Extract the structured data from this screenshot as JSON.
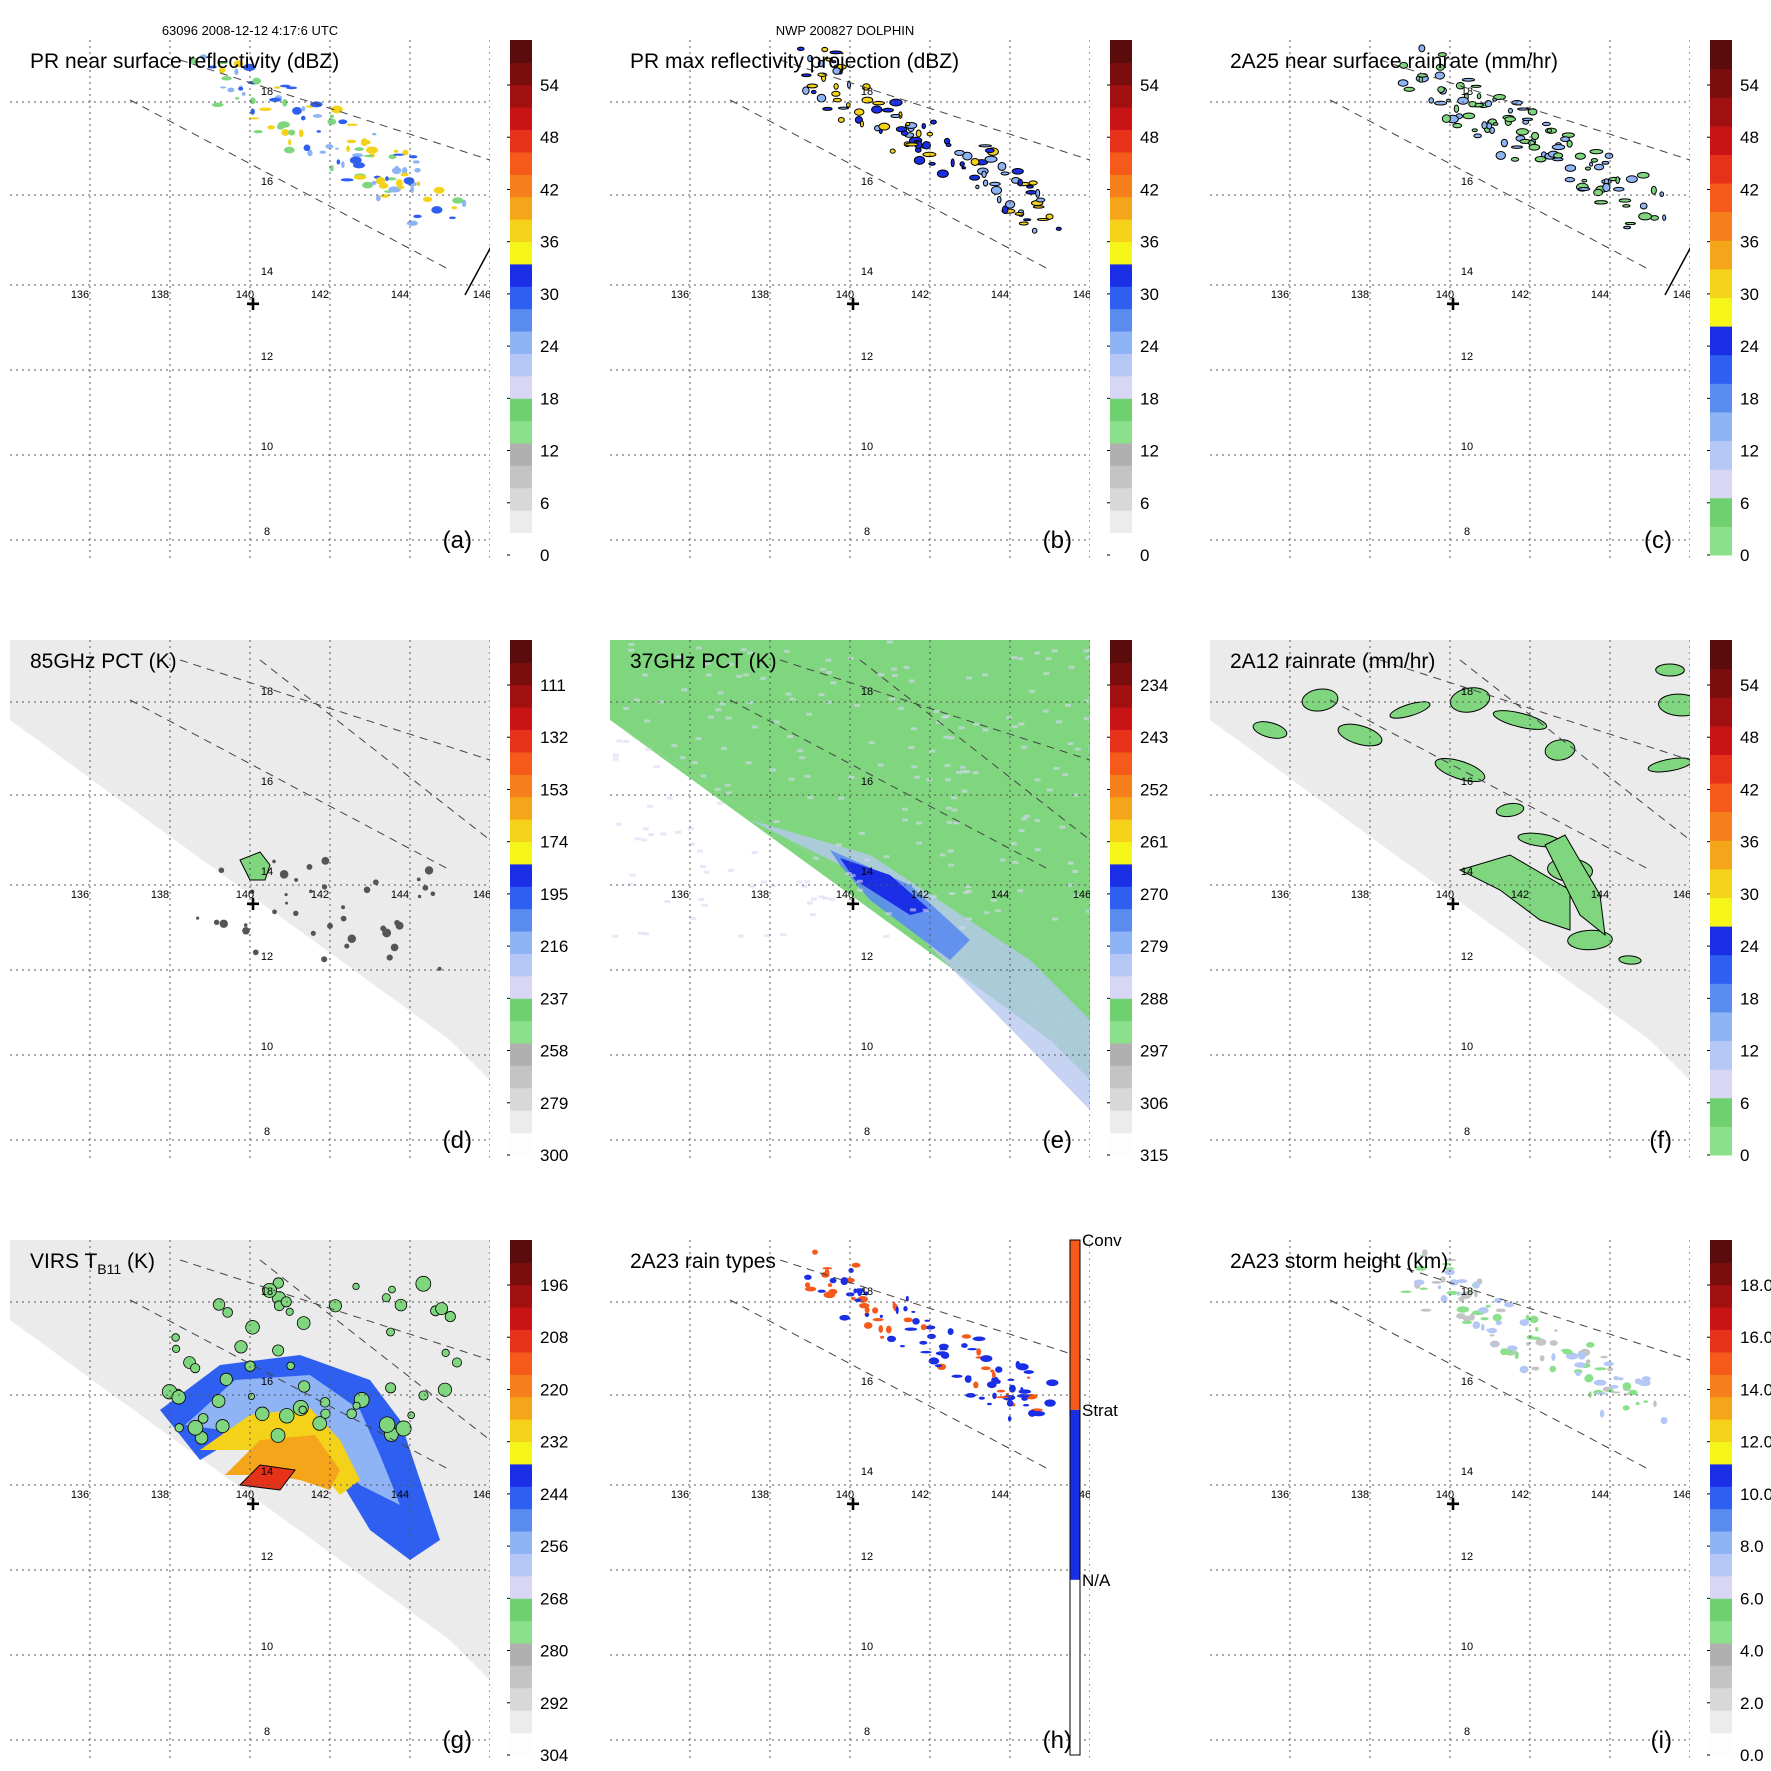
{
  "header": {
    "orbit_time": "63096 2008-12-12 4:17:6 UTC",
    "storm": "NWP 200827 DOLPHIN"
  },
  "map": {
    "lon_ticks": [
      "136",
      "138",
      "140",
      "142",
      "144",
      "146"
    ],
    "lat_ticks": [
      "18",
      "16",
      "14",
      "12",
      "10",
      "8"
    ],
    "center_marker": "+"
  },
  "panels": [
    {
      "id": "a",
      "label": "(a)",
      "title": "PR near surface reflectivity (dBZ)",
      "field": "pr_reflectivity",
      "swath": "pr",
      "cross_line": true,
      "colorbar": {
        "type": "dbz",
        "ticks": [
          "54",
          "48",
          "42",
          "36",
          "30",
          "24",
          "18",
          "12",
          "6",
          "0"
        ]
      }
    },
    {
      "id": "b",
      "label": "(b)",
      "title": "PR max reflectivity projection (dBZ)",
      "field": "pr_max",
      "swath": "pr",
      "cross_line": false,
      "colorbar": {
        "type": "dbz",
        "ticks": [
          "54",
          "48",
          "42",
          "36",
          "30",
          "24",
          "18",
          "12",
          "6",
          "0"
        ]
      }
    },
    {
      "id": "c",
      "label": "(c)",
      "title": "2A25 near surface rainrate (mm/hr)",
      "field": "pr_rain",
      "swath": "pr",
      "cross_line": true,
      "colorbar": {
        "type": "rain",
        "ticks": [
          "54",
          "48",
          "42",
          "36",
          "30",
          "24",
          "18",
          "12",
          "6",
          "0"
        ]
      }
    },
    {
      "id": "d",
      "label": "(d)",
      "title": "85GHz PCT (K)",
      "field": "pct85",
      "swath": "tmi",
      "cross_line": false,
      "colorbar": {
        "type": "pct",
        "ticks": [
          "111",
          "132",
          "153",
          "174",
          "195",
          "216",
          "237",
          "258",
          "279",
          "300"
        ]
      }
    },
    {
      "id": "e",
      "label": "(e)",
      "title": "37GHz PCT (K)",
      "field": "pct37",
      "swath": "tmi",
      "cross_line": false,
      "colorbar": {
        "type": "pct",
        "ticks": [
          "234",
          "243",
          "252",
          "261",
          "270",
          "279",
          "288",
          "297",
          "306",
          "315"
        ]
      }
    },
    {
      "id": "f",
      "label": "(f)",
      "title": "2A12 rainrate (mm/hr)",
      "field": "tmi_rain",
      "swath": "tmi",
      "cross_line": false,
      "colorbar": {
        "type": "rain",
        "ticks": [
          "54",
          "48",
          "42",
          "36",
          "30",
          "24",
          "18",
          "12",
          "6",
          "0"
        ]
      }
    },
    {
      "id": "g",
      "label": "(g)",
      "title": "VIRS T",
      "title_sub": "B11",
      "title_suffix": " (K)",
      "field": "virs",
      "swath": "tmi",
      "cross_line": false,
      "colorbar": {
        "type": "pct",
        "ticks": [
          "196",
          "208",
          "220",
          "232",
          "244",
          "256",
          "268",
          "280",
          "292",
          "304"
        ]
      }
    },
    {
      "id": "h",
      "label": "(h)",
      "title": "2A23 rain types",
      "field": "rain_types",
      "swath": "pr",
      "cross_line": false,
      "colorbar": {
        "type": "types",
        "ticks": [
          "Conv",
          "Strat",
          "N/A"
        ]
      }
    },
    {
      "id": "i",
      "label": "(i)",
      "title": "2A23 storm height (km)",
      "field": "storm_height",
      "swath": "pr",
      "cross_line": false,
      "colorbar": {
        "type": "height",
        "ticks": [
          "18.0",
          "16.0",
          "14.0",
          "12.0",
          "10.0",
          "8.0",
          "6.0",
          "4.0",
          "2.0",
          "0.0"
        ]
      }
    }
  ],
  "palettes": {
    "dbz": [
      "#ffffff",
      "#ececec",
      "#d8d8d8",
      "#c4c4c4",
      "#b0b0b0",
      "#8be08b",
      "#6fd06f",
      "#d7d7f5",
      "#b4c7f5",
      "#8eb4f5",
      "#5a8cf0",
      "#2f5ff0",
      "#1a2ee6",
      "#f5f51a",
      "#f5d21a",
      "#f5a51a",
      "#f57f1a",
      "#f55a1a",
      "#e63219",
      "#c81414",
      "#a01010",
      "#7a0e0e",
      "#5a0c0c"
    ],
    "rain": [
      "#8be08b",
      "#6fd06f",
      "#d7d7f5",
      "#b4c7f5",
      "#8eb4f5",
      "#5a8cf0",
      "#2f5ff0",
      "#1a2ee6",
      "#f5f51a",
      "#f5d21a",
      "#f5a51a",
      "#f57f1a",
      "#f55a1a",
      "#e63219",
      "#c81414",
      "#a01010",
      "#7a0e0e",
      "#5a0c0c"
    ],
    "pct": [
      "#fdfdfd",
      "#ececec",
      "#d8d8d8",
      "#c4c4c4",
      "#b0b0b0",
      "#8be08b",
      "#6fd06f",
      "#d7d7f5",
      "#b4c7f5",
      "#8eb4f5",
      "#5a8cf0",
      "#2f5ff0",
      "#1a2ee6",
      "#f5f51a",
      "#f5d21a",
      "#f5a51a",
      "#f57f1a",
      "#f55a1a",
      "#e63219",
      "#c81414",
      "#a01010",
      "#7a0e0e",
      "#5a0c0c"
    ],
    "height": [
      "#fdfdfd",
      "#ececec",
      "#d8d8d8",
      "#c4c4c4",
      "#b0b0b0",
      "#8be08b",
      "#6fd06f",
      "#d7d7f5",
      "#b4c7f5",
      "#8eb4f5",
      "#5a8cf0",
      "#2f5ff0",
      "#1a2ee6",
      "#f5f51a",
      "#f5d21a",
      "#f5a51a",
      "#f57f1a",
      "#f55a1a",
      "#e63219",
      "#c81414",
      "#a01010",
      "#7a0e0e",
      "#5a0c0c"
    ],
    "types": [
      "#ffffff",
      "#1a2ee6",
      "#f55a1a"
    ]
  },
  "colors": {
    "grid": "#555555",
    "swath_edge": "#444444",
    "tmi_bg": "#ebebeb",
    "tmi_bg_37": "#7fd67f",
    "contour": "#000000"
  }
}
